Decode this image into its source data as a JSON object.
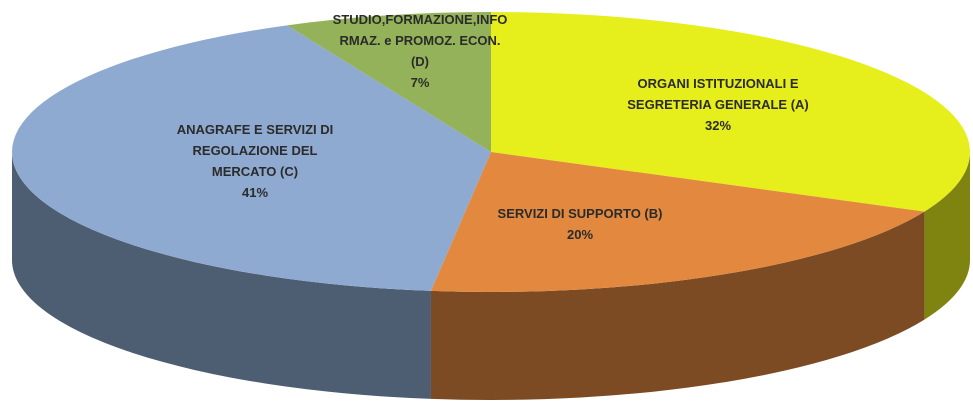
{
  "chart_data": {
    "type": "pie3d",
    "categories": [
      "ORGANI ISTITUZIONALI E\nSEGRETERIA GENERALE (A)",
      "SERVIZI DI SUPPORTO (B)",
      "ANAGRAFE E SERVIZI DI\nREGOLAZIONE DEL\nMERCATO (C)",
      "STUDIO,FORMAZIONE,INFO\nRMAZ. e PROMOZ. ECON.\n(D)"
    ],
    "values": [
      32,
      20,
      41,
      7
    ],
    "value_labels": [
      "32%",
      "20%",
      "41%",
      "7%"
    ],
    "colors": [
      "#e6ee1c",
      "#e2893f",
      "#8eaad0",
      "#93b25a"
    ]
  }
}
